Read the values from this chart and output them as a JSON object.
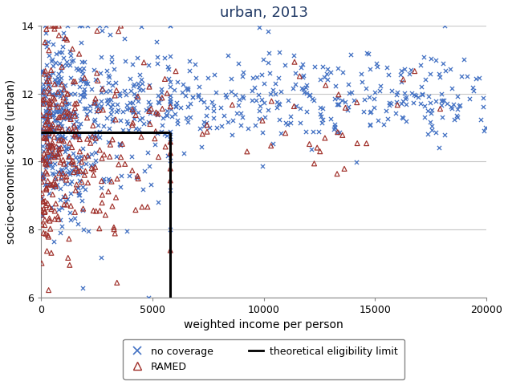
{
  "title": "urban, 2013",
  "xlabel": "weighted income per person",
  "ylabel": "socio-economic score (urban)",
  "xlim": [
    0,
    20000
  ],
  "ylim": [
    6,
    14
  ],
  "yticks": [
    6,
    8,
    10,
    12,
    14
  ],
  "xticks": [
    0,
    5000,
    10000,
    15000,
    20000
  ],
  "eligibility_income": 5800,
  "eligibility_score": 10.85,
  "no_coverage_color": "#4472C4",
  "ramed_color": "#A0302A",
  "line_color": "black",
  "title_color": "#1F3864",
  "background_color": "white",
  "grid_color": "#C8C8C8",
  "seed": 12,
  "n_no_coverage": 800,
  "n_ramed": 320
}
